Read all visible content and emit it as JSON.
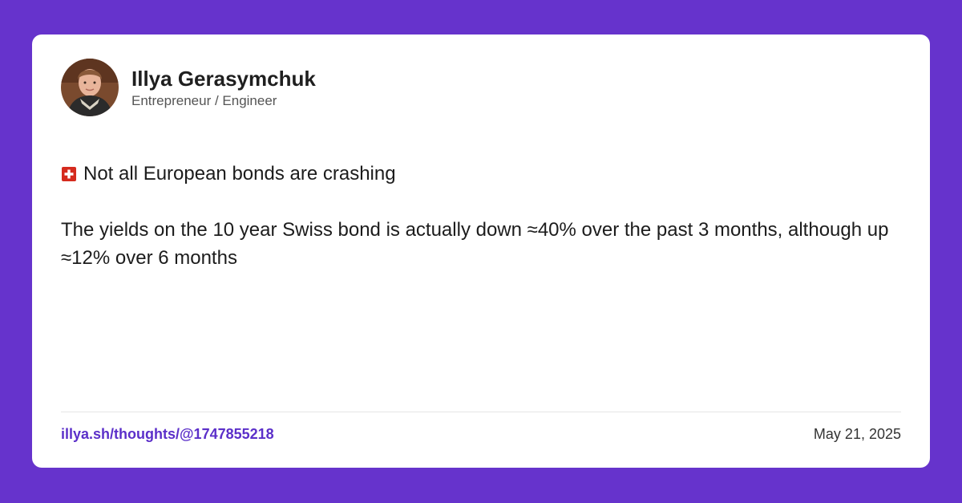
{
  "author": {
    "name": "Illya Gerasymchuk",
    "role": "Entrepreneur / Engineer",
    "avatar_icon": "avatar-photo"
  },
  "post": {
    "headline_icon": "swiss-flag-icon",
    "headline": "Not all European bonds are crashing",
    "body": "The yields on the 10 year Swiss bond is actually down ≈40% over the past 3 months, although up ≈12% over 6 months"
  },
  "footer": {
    "link": "illya.sh/thoughts/@1747855218",
    "date": "May 21, 2025"
  },
  "colors": {
    "background": "#6633cc",
    "card": "#ffffff",
    "link": "#5b2fc9",
    "flag_red": "#d52b1e"
  }
}
